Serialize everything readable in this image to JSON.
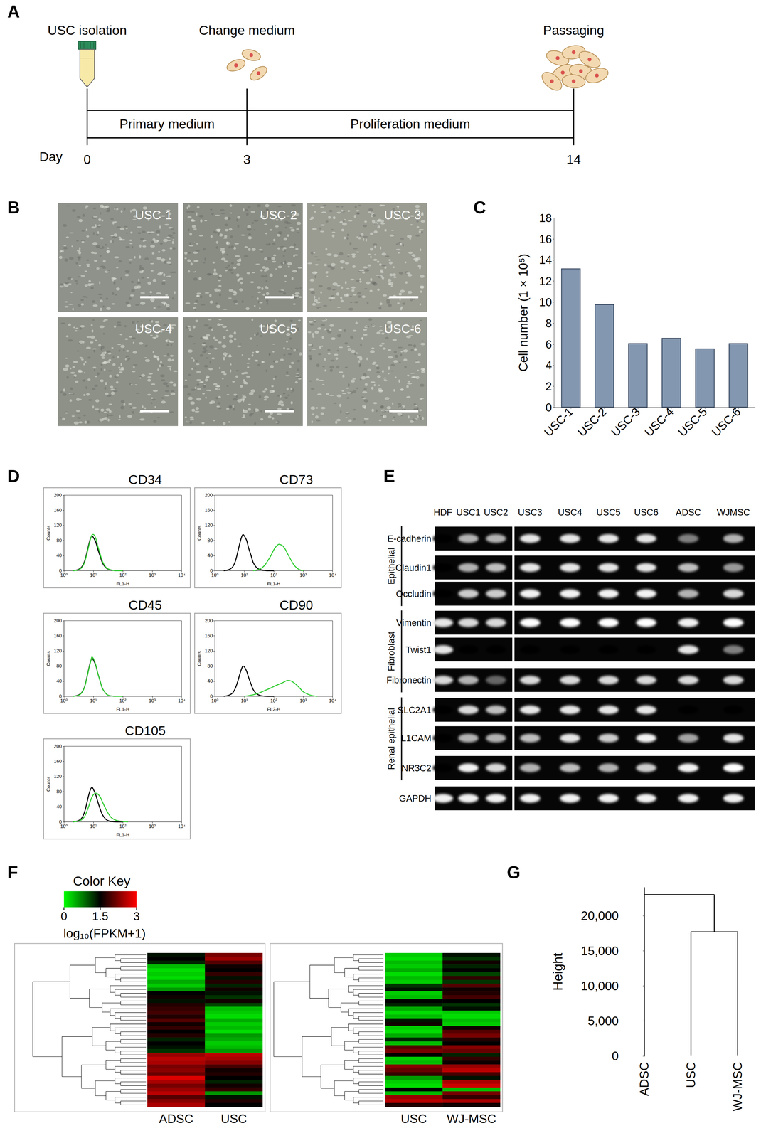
{
  "panel_labels": [
    "A",
    "B",
    "C",
    "D",
    "E",
    "F",
    "G"
  ],
  "timeline": {
    "events": [
      {
        "day": 0,
        "label": "USC isolation"
      },
      {
        "day": 3,
        "label": "Change medium"
      },
      {
        "day": 14,
        "label": "Passaging"
      }
    ],
    "phases": [
      "Primary medium",
      "Proliferation medium"
    ],
    "axis_label": "Day"
  },
  "micrographs": [
    "USC-1",
    "USC-2",
    "USC-3",
    "USC-4",
    "USC-5",
    "USC-6"
  ],
  "gel": {
    "lanes": [
      "HDF",
      "USC1",
      "USC2",
      "USC3",
      "USC4",
      "USC5",
      "USC6",
      "ADSC",
      "WJMSC"
    ],
    "genes": [
      "E-cadherin",
      "Claudin1",
      "Occludin",
      "Vimentin",
      "Twist1",
      "Fibronectin",
      "SLC2A1",
      "L1CAM",
      "NR3C2",
      "GAPDH"
    ],
    "groups": [
      {
        "label": "Epithelial",
        "genes": [
          "E-cadherin",
          "Claudin1",
          "Occludin"
        ]
      },
      {
        "label": "Fibroblast",
        "genes": [
          "Vimentin",
          "Twist1",
          "Fibronectin"
        ]
      },
      {
        "label": "Renal epithelial",
        "genes": [
          "SLC2A1",
          "L1CAM",
          "NR3C2"
        ]
      }
    ],
    "intensity": [
      [
        0,
        0.7,
        0.7,
        0.9,
        0.9,
        0.9,
        0.9,
        0.5,
        0.7
      ],
      [
        0,
        0.7,
        0.75,
        0.9,
        0.9,
        0.9,
        0.9,
        0.75,
        0.6
      ],
      [
        0,
        0.8,
        0.8,
        0.95,
        0.95,
        0.95,
        0.95,
        0.7,
        0.85
      ],
      [
        0.9,
        0.85,
        0.85,
        1,
        1,
        1,
        1,
        0.95,
        1
      ],
      [
        0.9,
        0,
        0,
        0,
        0,
        0,
        0,
        0.9,
        0.5
      ],
      [
        0.85,
        0.7,
        0.4,
        0.85,
        0.85,
        0.85,
        0.85,
        0.85,
        0.85
      ],
      [
        0,
        0.85,
        0.75,
        0.9,
        0.9,
        0.9,
        0.9,
        0,
        0
      ],
      [
        0,
        0.7,
        0.7,
        0.75,
        0.9,
        0.8,
        0.95,
        0.65,
        0.9
      ],
      [
        0,
        0.95,
        0.85,
        0.7,
        0.75,
        0.7,
        0.8,
        0.95,
        1
      ],
      [
        0.95,
        0.95,
        0.95,
        0.95,
        0.95,
        0.95,
        0.95,
        0.95,
        0.95
      ]
    ]
  },
  "color_key": {
    "title": "Color Key",
    "label": "log₁₀(FPKM+1)",
    "range": [
      0,
      3
    ],
    "ticks": [
      0,
      1.5,
      3
    ],
    "colors": [
      "#00ff00",
      "#000000",
      "#ff0000"
    ]
  },
  "chart_data": [
    {
      "type": "bar",
      "categories": [
        "USC-1",
        "USC-2",
        "USC-3",
        "USC-4",
        "USC-5",
        "USC-6"
      ],
      "values": [
        13.2,
        9.8,
        6.1,
        6.6,
        5.6,
        6.1
      ],
      "ylabel": "Cell number (1 × 10⁵)",
      "ylim": [
        0,
        18
      ],
      "yticks": [
        0,
        2,
        4,
        6,
        8,
        10,
        12,
        14,
        16,
        18
      ],
      "color": "#8497b0",
      "grid": false
    },
    {
      "type": "line",
      "title": "CD34",
      "xlabel": "FL1-H",
      "ylabel": "Counts",
      "log": "x",
      "xlim": [
        1,
        10000
      ],
      "xticks": [
        {
          "value": 1,
          "label": "10⁰"
        },
        {
          "value": 10,
          "label": "10¹"
        },
        {
          "value": 100,
          "label": "10²"
        },
        {
          "value": 1000,
          "label": "10³"
        },
        {
          "value": 10000,
          "label": "10⁴"
        }
      ],
      "ylim": [
        0,
        200
      ],
      "yticks": [
        0,
        40,
        80,
        120,
        160,
        200
      ],
      "grid": false,
      "series": [
        {
          "color": "#000000",
          "x": [
            2,
            3,
            4,
            5,
            6,
            7,
            8,
            9,
            10,
            12,
            14,
            17,
            20,
            25,
            30,
            40,
            60,
            100
          ],
          "values": [
            0,
            3,
            10,
            25,
            48,
            70,
            86,
            92,
            88,
            76,
            58,
            38,
            22,
            10,
            5,
            2,
            0,
            0
          ]
        },
        {
          "color": "#33cc33",
          "x": [
            2,
            3,
            4,
            5,
            6,
            7,
            8,
            9,
            10,
            12,
            14,
            17,
            20,
            25,
            30,
            40,
            60,
            100
          ],
          "values": [
            0,
            2,
            8,
            22,
            44,
            66,
            84,
            95,
            96,
            86,
            66,
            44,
            26,
            12,
            6,
            2,
            0,
            0
          ]
        }
      ]
    },
    {
      "type": "line",
      "title": "CD73",
      "xlabel": "FL1-H",
      "ylabel": "Counts",
      "log": "x",
      "xlim": [
        1,
        10000
      ],
      "xticks": [
        {
          "value": 1,
          "label": "10⁰"
        },
        {
          "value": 10,
          "label": "10¹"
        },
        {
          "value": 100,
          "label": "10²"
        },
        {
          "value": 1000,
          "label": "10³"
        },
        {
          "value": 10000,
          "label": "10⁴"
        }
      ],
      "ylim": [
        0,
        200
      ],
      "yticks": [
        0,
        40,
        80,
        120,
        160,
        200
      ],
      "grid": false,
      "series": [
        {
          "color": "#000000",
          "x": [
            2,
            3,
            4,
            5,
            6,
            7,
            8,
            9,
            10,
            12,
            14,
            17,
            20,
            25,
            30,
            40,
            60,
            100
          ],
          "values": [
            0,
            3,
            10,
            26,
            50,
            72,
            88,
            96,
            92,
            80,
            60,
            40,
            22,
            10,
            5,
            2,
            0,
            0
          ]
        },
        {
          "color": "#33cc33",
          "x": [
            20,
            30,
            40,
            50,
            60,
            80,
            100,
            120,
            150,
            200,
            250,
            300,
            400,
            500,
            700,
            1000
          ],
          "values": [
            0,
            3,
            8,
            15,
            24,
            40,
            55,
            64,
            70,
            66,
            56,
            44,
            26,
            14,
            4,
            0
          ]
        }
      ]
    },
    {
      "type": "line",
      "title": "CD45",
      "xlabel": "FL1-H",
      "ylabel": "Counts",
      "log": "x",
      "xlim": [
        1,
        10000
      ],
      "xticks": [
        {
          "value": 1,
          "label": "10⁰"
        },
        {
          "value": 10,
          "label": "10¹"
        },
        {
          "value": 100,
          "label": "10²"
        },
        {
          "value": 1000,
          "label": "10³"
        },
        {
          "value": 10000,
          "label": "10⁴"
        }
      ],
      "ylim": [
        0,
        200
      ],
      "yticks": [
        0,
        40,
        80,
        120,
        160,
        200
      ],
      "grid": false,
      "series": [
        {
          "color": "#000000",
          "x": [
            2,
            3,
            4,
            5,
            6,
            7,
            8,
            9,
            10,
            12,
            14,
            17,
            20,
            25,
            30,
            40,
            60,
            100
          ],
          "values": [
            0,
            3,
            10,
            25,
            50,
            74,
            92,
            100,
            96,
            82,
            62,
            40,
            22,
            10,
            4,
            1,
            0,
            0
          ]
        },
        {
          "color": "#33cc33",
          "x": [
            2,
            3,
            4,
            5,
            6,
            7,
            8,
            9,
            10,
            12,
            14,
            17,
            20,
            25,
            30,
            40,
            60,
            100
          ],
          "values": [
            0,
            2,
            9,
            24,
            48,
            72,
            90,
            104,
            100,
            84,
            62,
            40,
            22,
            10,
            4,
            1,
            0,
            0
          ]
        }
      ]
    },
    {
      "type": "line",
      "title": "CD90",
      "xlabel": "FL2-H",
      "ylabel": "Counts",
      "log": "x",
      "xlim": [
        1,
        10000
      ],
      "xticks": [
        {
          "value": 1,
          "label": "10⁰"
        },
        {
          "value": 10,
          "label": "10¹"
        },
        {
          "value": 100,
          "label": "10²"
        },
        {
          "value": 1000,
          "label": "10³"
        },
        {
          "value": 10000,
          "label": "10⁴"
        }
      ],
      "ylim": [
        0,
        200
      ],
      "yticks": [
        0,
        40,
        80,
        120,
        160,
        200
      ],
      "grid": false,
      "series": [
        {
          "color": "#000000",
          "x": [
            2,
            3,
            4,
            5,
            6,
            7,
            8,
            9,
            10,
            12,
            14,
            17,
            20,
            25,
            30,
            40,
            60,
            100
          ],
          "values": [
            0,
            3,
            9,
            22,
            40,
            58,
            72,
            80,
            78,
            66,
            50,
            32,
            18,
            8,
            4,
            1,
            0,
            0
          ]
        },
        {
          "color": "#33cc33",
          "x": [
            10,
            20,
            30,
            40,
            60,
            80,
            100,
            150,
            200,
            300,
            400,
            600,
            800,
            1000,
            1500,
            2000,
            3000
          ],
          "values": [
            0,
            4,
            8,
            12,
            18,
            22,
            26,
            32,
            36,
            42,
            40,
            30,
            20,
            12,
            5,
            2,
            0
          ]
        }
      ]
    },
    {
      "type": "line",
      "title": "CD105",
      "xlabel": "FL1-H",
      "ylabel": "Counts",
      "log": "x",
      "xlim": [
        1,
        10000
      ],
      "xticks": [
        {
          "value": 1,
          "label": "10⁰"
        },
        {
          "value": 10,
          "label": "10¹"
        },
        {
          "value": 100,
          "label": "10²"
        },
        {
          "value": 1000,
          "label": "10³"
        },
        {
          "value": 10000,
          "label": "10⁴"
        }
      ],
      "ylim": [
        0,
        200
      ],
      "yticks": [
        0,
        40,
        80,
        120,
        160,
        200
      ],
      "grid": false,
      "series": [
        {
          "color": "#000000",
          "x": [
            2,
            3,
            4,
            5,
            6,
            7,
            8,
            9,
            10,
            12,
            14,
            17,
            20,
            25,
            30,
            40,
            60,
            100
          ],
          "values": [
            0,
            3,
            10,
            26,
            50,
            72,
            86,
            92,
            86,
            72,
            54,
            34,
            20,
            9,
            4,
            1,
            0,
            0
          ]
        },
        {
          "color": "#33cc33",
          "x": [
            2,
            3,
            4,
            5,
            6,
            7,
            8,
            9,
            10,
            12,
            14,
            17,
            20,
            25,
            30,
            40,
            60,
            100,
            150
          ],
          "values": [
            0,
            2,
            6,
            14,
            28,
            42,
            56,
            66,
            72,
            76,
            74,
            66,
            54,
            38,
            26,
            12,
            4,
            1,
            0
          ]
        }
      ]
    },
    {
      "type": "heatmap",
      "categories": [
        "ADSC",
        "USC"
      ],
      "values": [
        [
          1.4,
          2.2
        ],
        [
          1.5,
          2.4
        ],
        [
          1.3,
          2.0
        ],
        [
          0.4,
          1.6
        ],
        [
          0.2,
          1.5
        ],
        [
          0.3,
          1.8
        ],
        [
          0.2,
          1.4
        ],
        [
          0.5,
          1.7
        ],
        [
          0.3,
          1.3
        ],
        [
          0.6,
          1.6
        ],
        [
          1.5,
          1.4
        ],
        [
          1.6,
          1.2
        ],
        [
          1.4,
          1.6
        ],
        [
          1.7,
          1.1
        ],
        [
          1.8,
          0.4
        ],
        [
          1.9,
          0.3
        ],
        [
          1.7,
          0.2
        ],
        [
          2.0,
          0.5
        ],
        [
          1.6,
          0.3
        ],
        [
          1.8,
          0.4
        ],
        [
          1.5,
          0.2
        ],
        [
          1.7,
          0.6
        ],
        [
          1.3,
          0.5
        ],
        [
          1.5,
          0.3
        ],
        [
          1.4,
          0.4
        ],
        [
          1.2,
          0.6
        ],
        [
          2.4,
          2.6
        ],
        [
          2.6,
          2.5
        ],
        [
          2.5,
          2.3
        ],
        [
          2.2,
          1.9
        ],
        [
          2.3,
          1.6
        ],
        [
          2.1,
          1.7
        ],
        [
          2.8,
          1.5
        ],
        [
          2.5,
          1.3
        ],
        [
          2.2,
          1.6
        ],
        [
          2.4,
          1.8
        ],
        [
          2.6,
          0.6
        ],
        [
          2.0,
          1.4
        ],
        [
          2.3,
          1.7
        ],
        [
          2.5,
          1.5
        ]
      ]
    },
    {
      "type": "heatmap",
      "categories": [
        "USC",
        "WJ-MSC"
      ],
      "values": [
        [
          0.3,
          1.4
        ],
        [
          0.2,
          1.2
        ],
        [
          0.4,
          1.6
        ],
        [
          0.3,
          1.3
        ],
        [
          0.5,
          1.5
        ],
        [
          0.2,
          1.1
        ],
        [
          0.4,
          1.8
        ],
        [
          0.3,
          1.2
        ],
        [
          1.2,
          2.0
        ],
        [
          1.4,
          1.6
        ],
        [
          0.3,
          1.7
        ],
        [
          0.4,
          1.9
        ],
        [
          1.5,
          1.5
        ],
        [
          1.3,
          1.2
        ],
        [
          0.5,
          1.4
        ],
        [
          0.2,
          0.3
        ],
        [
          0.4,
          0.2
        ],
        [
          1.4,
          0.4
        ],
        [
          1.6,
          0.3
        ],
        [
          0.3,
          1.6
        ],
        [
          0.2,
          2.0
        ],
        [
          0.5,
          2.2
        ],
        [
          1.3,
          1.7
        ],
        [
          0.4,
          1.5
        ],
        [
          2.0,
          2.3
        ],
        [
          2.2,
          2.1
        ],
        [
          1.5,
          1.3
        ],
        [
          0.3,
          1.8
        ],
        [
          0.4,
          1.6
        ],
        [
          2.3,
          2.4
        ],
        [
          2.1,
          2.6
        ],
        [
          1.8,
          1.9
        ],
        [
          0.6,
          1.4
        ],
        [
          0.3,
          2.5
        ],
        [
          0.2,
          2.7
        ],
        [
          1.5,
          0.4
        ],
        [
          0.4,
          2.2
        ],
        [
          2.4,
          1.8
        ],
        [
          2.6,
          2.5
        ],
        [
          1.7,
          1.6
        ]
      ]
    },
    {
      "type": "dendrogram",
      "categories": [
        "ADSC",
        "USC",
        "WJ-MSC"
      ],
      "merges": [
        {
          "children": [
            [
              "USC"
            ],
            [
              "WJ-MSC"
            ]
          ],
          "height": 17700
        },
        {
          "children": [
            [
              "ADSC"
            ],
            [
              "USC",
              "WJ-MSC"
            ]
          ],
          "height": 23000
        }
      ],
      "ylabel": "Height",
      "ylim": [
        0,
        24000
      ],
      "yticks": [
        0,
        {
          "value": 5000,
          "label": "5,000"
        },
        {
          "value": 10000,
          "label": "10,000"
        },
        {
          "value": 15000,
          "label": "15,000"
        },
        {
          "value": 20000,
          "label": "20,000"
        }
      ],
      "color": "#000000",
      "grid": false
    }
  ]
}
